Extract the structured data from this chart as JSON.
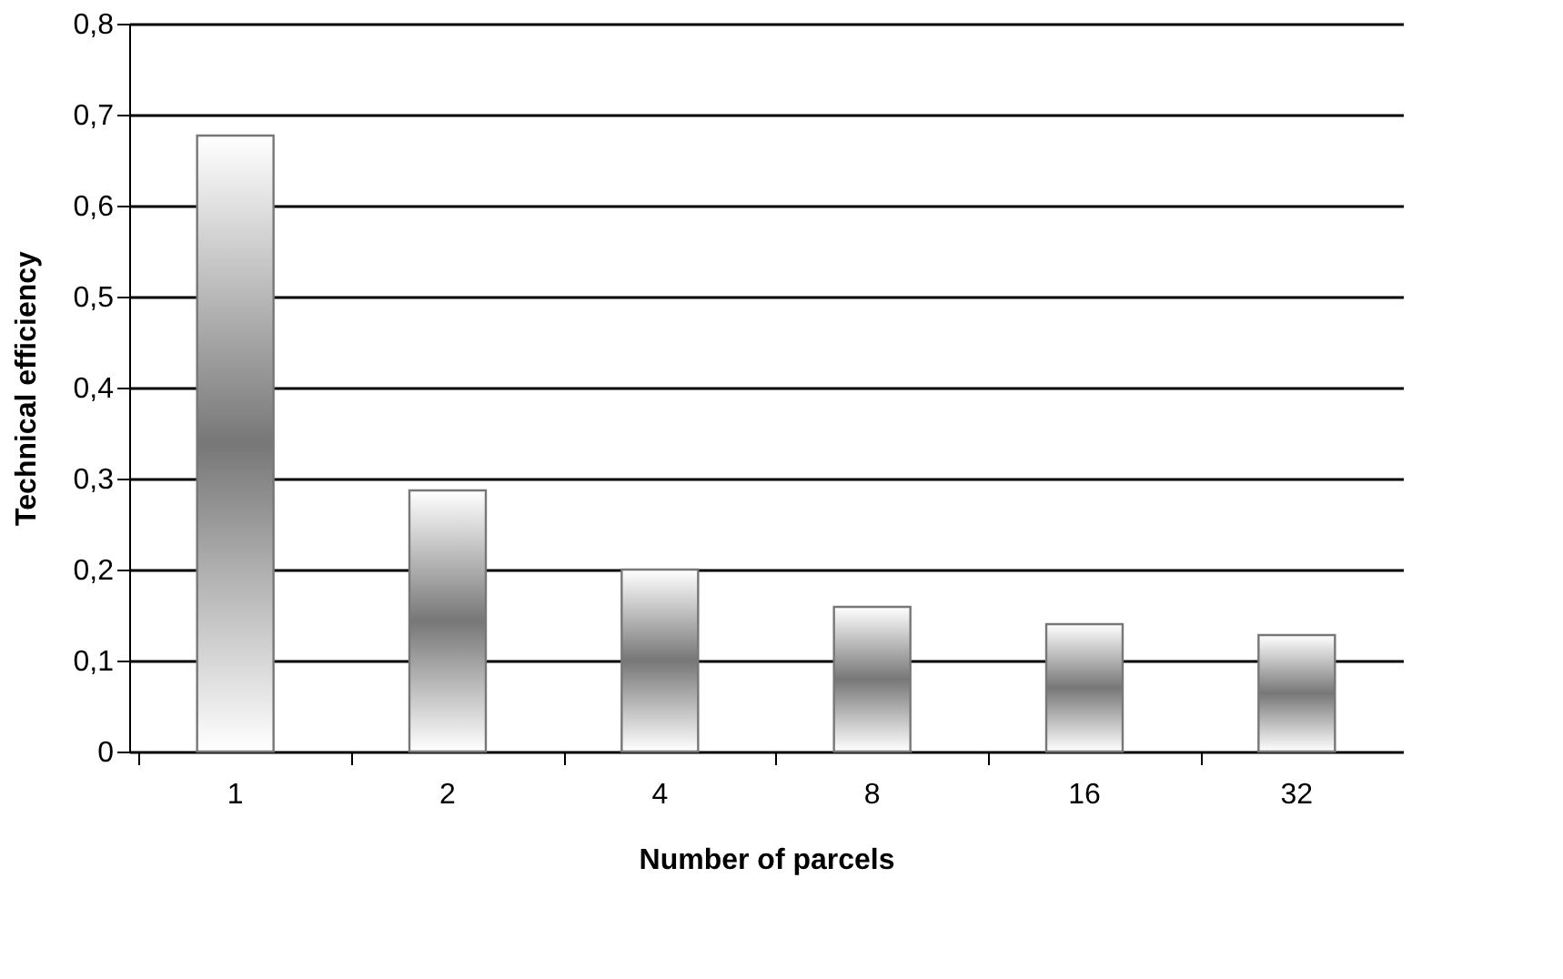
{
  "chart_data": {
    "type": "bar",
    "xlabel": "Number of parcels",
    "ylabel": "Technical efficiency",
    "categories": [
      "1",
      "2",
      "4",
      "8",
      "16",
      "32"
    ],
    "values": [
      0.677,
      0.287,
      0.2,
      0.159,
      0.14,
      0.128
    ],
    "color": "#777777",
    "ylim": [
      0,
      0.8
    ],
    "yticks": [
      0,
      {
        "value": 0.1,
        "label": "0,1"
      },
      {
        "value": 0.2,
        "label": "0,2"
      },
      {
        "value": 0.3,
        "label": "0,3"
      },
      {
        "value": 0.4,
        "label": "0,4"
      },
      {
        "value": 0.5,
        "label": "0,5"
      },
      {
        "value": 0.6,
        "label": "0,6"
      },
      {
        "value": 0.7,
        "label": "0,7"
      },
      {
        "value": 0.8,
        "label": "0,8"
      }
    ],
    "grid": "y"
  }
}
